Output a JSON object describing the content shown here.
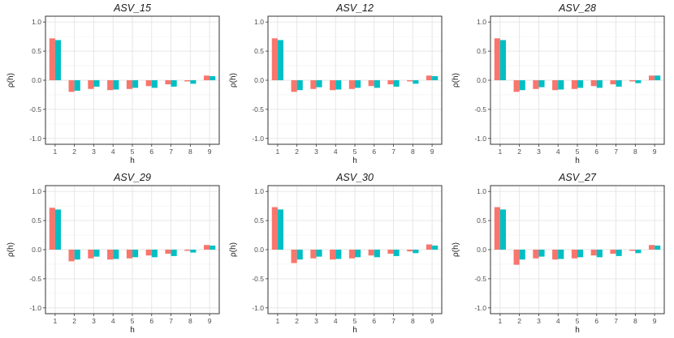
{
  "chart_data": [
    {
      "type": "bar",
      "title": "ASV_15",
      "xlabel": "h",
      "ylabel": "ρ(h)",
      "categories": [
        "1",
        "2",
        "3",
        "4",
        "5",
        "6",
        "7",
        "8",
        "9"
      ],
      "yticks": [
        "-1.0",
        "-0.5",
        "0.0",
        "0.5",
        "1.0"
      ],
      "ylim": [
        -1.1,
        1.1
      ],
      "series": [
        {
          "name": "series_1",
          "color": "#F8766D",
          "values": [
            0.72,
            -0.2,
            -0.15,
            -0.17,
            -0.15,
            -0.1,
            -0.07,
            -0.02,
            0.08
          ]
        },
        {
          "name": "series_2",
          "color": "#00BFC4",
          "values": [
            0.69,
            -0.18,
            -0.11,
            -0.16,
            -0.13,
            -0.13,
            -0.11,
            -0.06,
            0.07
          ]
        }
      ]
    },
    {
      "type": "bar",
      "title": "ASV_12",
      "xlabel": "h",
      "ylabel": "ρ(h)",
      "categories": [
        "1",
        "2",
        "3",
        "4",
        "5",
        "6",
        "7",
        "8",
        "9"
      ],
      "yticks": [
        "-1.0",
        "-0.5",
        "0.0",
        "0.5",
        "1.0"
      ],
      "ylim": [
        -1.1,
        1.1
      ],
      "series": [
        {
          "name": "series_1",
          "color": "#F8766D",
          "values": [
            0.72,
            -0.2,
            -0.15,
            -0.17,
            -0.15,
            -0.1,
            -0.07,
            -0.02,
            0.08
          ]
        },
        {
          "name": "series_2",
          "color": "#00BFC4",
          "values": [
            0.69,
            -0.17,
            -0.12,
            -0.16,
            -0.13,
            -0.13,
            -0.11,
            -0.06,
            0.07
          ]
        }
      ]
    },
    {
      "type": "bar",
      "title": "ASV_28",
      "xlabel": "h",
      "ylabel": "ρ(h)",
      "categories": [
        "1",
        "2",
        "3",
        "4",
        "5",
        "6",
        "7",
        "8",
        "9"
      ],
      "yticks": [
        "-1.0",
        "-0.5",
        "0.0",
        "0.5",
        "1.0"
      ],
      "ylim": [
        -1.1,
        1.1
      ],
      "series": [
        {
          "name": "series_1",
          "color": "#F8766D",
          "values": [
            0.72,
            -0.2,
            -0.15,
            -0.17,
            -0.15,
            -0.1,
            -0.07,
            -0.02,
            0.08
          ]
        },
        {
          "name": "series_2",
          "color": "#00BFC4",
          "values": [
            0.69,
            -0.17,
            -0.12,
            -0.16,
            -0.13,
            -0.13,
            -0.11,
            -0.05,
            0.08
          ]
        }
      ]
    },
    {
      "type": "bar",
      "title": "ASV_29",
      "xlabel": "h",
      "ylabel": "ρ(h)",
      "categories": [
        "1",
        "2",
        "3",
        "4",
        "5",
        "6",
        "7",
        "8",
        "9"
      ],
      "yticks": [
        "-1.0",
        "-0.5",
        "0.0",
        "0.5",
        "1.0"
      ],
      "ylim": [
        -1.1,
        1.1
      ],
      "series": [
        {
          "name": "series_1",
          "color": "#F8766D",
          "values": [
            0.72,
            -0.2,
            -0.15,
            -0.17,
            -0.15,
            -0.1,
            -0.07,
            -0.02,
            0.08
          ]
        },
        {
          "name": "series_2",
          "color": "#00BFC4",
          "values": [
            0.69,
            -0.17,
            -0.12,
            -0.16,
            -0.13,
            -0.13,
            -0.11,
            -0.05,
            0.07
          ]
        }
      ]
    },
    {
      "type": "bar",
      "title": "ASV_30",
      "xlabel": "h",
      "ylabel": "ρ(h)",
      "categories": [
        "1",
        "2",
        "3",
        "4",
        "5",
        "6",
        "7",
        "8",
        "9"
      ],
      "yticks": [
        "-1.0",
        "-0.5",
        "0.0",
        "0.5",
        "1.0"
      ],
      "ylim": [
        -1.1,
        1.1
      ],
      "series": [
        {
          "name": "series_1",
          "color": "#F8766D",
          "values": [
            0.73,
            -0.23,
            -0.15,
            -0.17,
            -0.15,
            -0.1,
            -0.07,
            -0.03,
            0.09
          ]
        },
        {
          "name": "series_2",
          "color": "#00BFC4",
          "values": [
            0.69,
            -0.17,
            -0.12,
            -0.16,
            -0.13,
            -0.13,
            -0.11,
            -0.06,
            0.07
          ]
        }
      ]
    },
    {
      "type": "bar",
      "title": "ASV_27",
      "xlabel": "h",
      "ylabel": "ρ(h)",
      "categories": [
        "1",
        "2",
        "3",
        "4",
        "5",
        "6",
        "7",
        "8",
        "9"
      ],
      "yticks": [
        "-1.0",
        "-0.5",
        "0.0",
        "0.5",
        "1.0"
      ],
      "ylim": [
        -1.1,
        1.1
      ],
      "series": [
        {
          "name": "series_1",
          "color": "#F8766D",
          "values": [
            0.73,
            -0.26,
            -0.15,
            -0.17,
            -0.15,
            -0.1,
            -0.07,
            -0.02,
            0.08
          ]
        },
        {
          "name": "series_2",
          "color": "#00BFC4",
          "values": [
            0.69,
            -0.17,
            -0.12,
            -0.16,
            -0.13,
            -0.13,
            -0.11,
            -0.06,
            0.07
          ]
        }
      ]
    }
  ]
}
